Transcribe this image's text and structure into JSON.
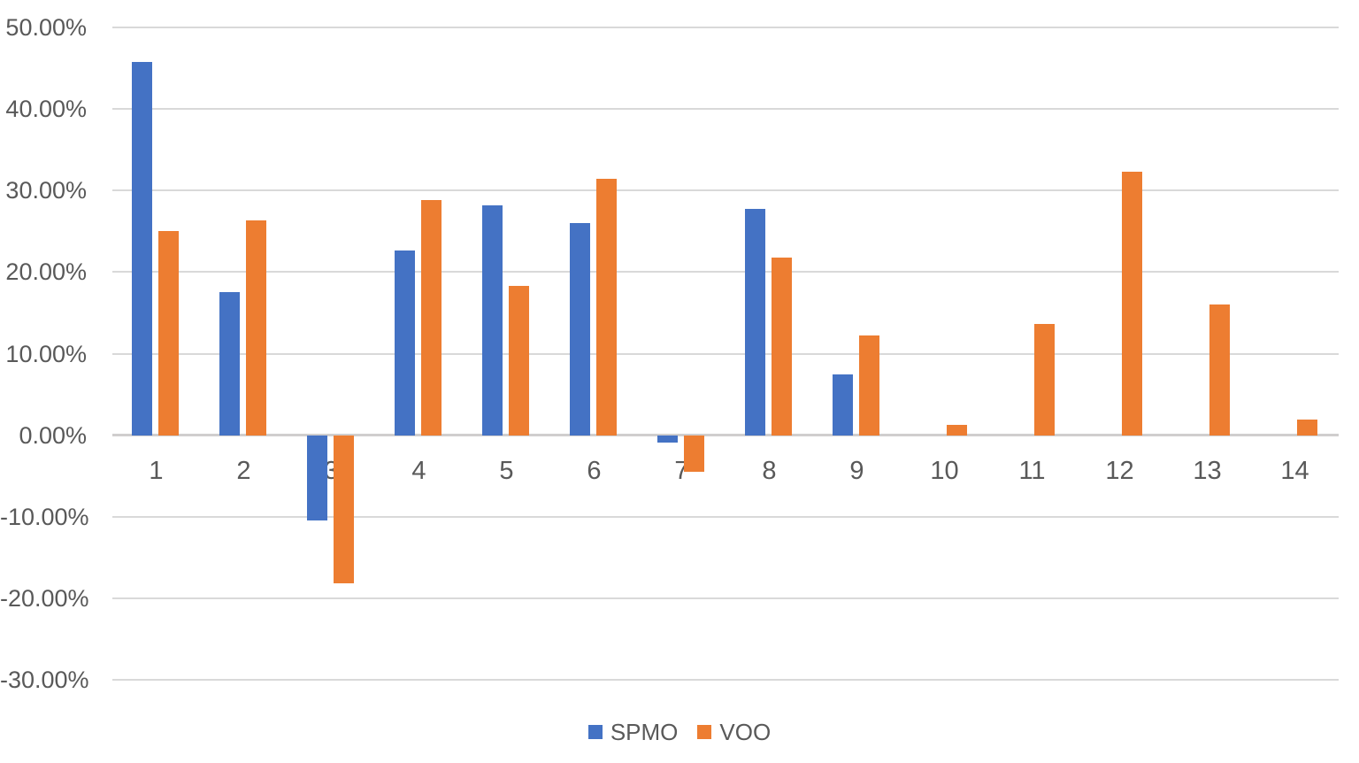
{
  "chart_data": {
    "type": "bar",
    "title": "",
    "xlabel": "",
    "ylabel": "",
    "categories": [
      "1",
      "2",
      "3",
      "4",
      "5",
      "6",
      "7",
      "8",
      "9",
      "10",
      "11",
      "12",
      "13",
      "14"
    ],
    "series": [
      {
        "name": "SPMO",
        "color": "#4472C4",
        "values": [
          45.8,
          17.5,
          -10.5,
          22.7,
          28.2,
          26.0,
          -0.9,
          27.7,
          7.4,
          null,
          null,
          null,
          null,
          null
        ]
      },
      {
        "name": "VOO",
        "color": "#ED7D31",
        "values": [
          25.0,
          26.3,
          -18.2,
          28.8,
          18.3,
          31.4,
          -4.5,
          21.8,
          12.2,
          1.3,
          13.6,
          32.3,
          16.0,
          1.9
        ]
      }
    ],
    "ylim": [
      -30,
      50
    ],
    "y_ticks": [
      {
        "value": 50,
        "label": "50.00%"
      },
      {
        "value": 40,
        "label": "40.00%"
      },
      {
        "value": 30,
        "label": "30.00%"
      },
      {
        "value": 20,
        "label": "20.00%"
      },
      {
        "value": 10,
        "label": "10.00%"
      },
      {
        "value": 0,
        "label": "0.00%"
      },
      {
        "value": -10,
        "label": "-10.00%"
      },
      {
        "value": -20,
        "label": "-20.00%"
      },
      {
        "value": -30,
        "label": "-30.00%"
      }
    ],
    "value_format": "percent",
    "grid": "horizontal",
    "legend_position": "bottom",
    "legend": [
      "SPMO",
      "VOO"
    ]
  },
  "colors": {
    "gridline": "#D9D9D9",
    "axis_line": "#D0CECE",
    "text": "#595959",
    "background": "#FFFFFF",
    "series_spmo": "#4472C4",
    "series_voo": "#ED7D31"
  }
}
